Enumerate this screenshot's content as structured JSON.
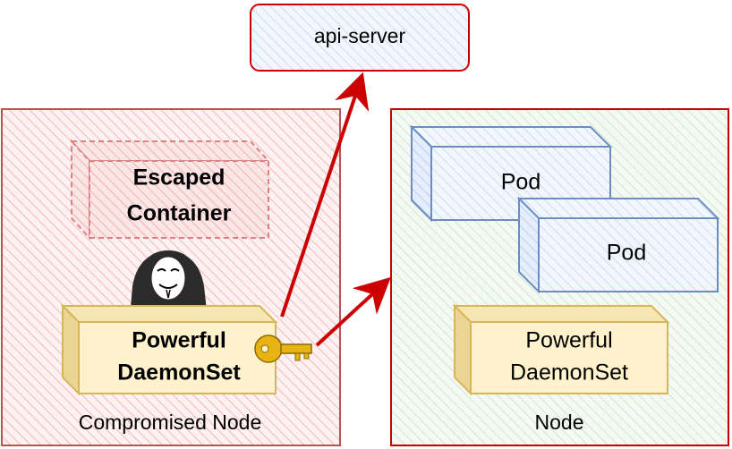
{
  "api_server": {
    "label": "api-server"
  },
  "compromised_node": {
    "label": "Compromised Node",
    "escaped_container": {
      "line1": "Escaped",
      "line2": "Container"
    },
    "daemonset": {
      "line1": "Powerful",
      "line2": "DaemonSet"
    }
  },
  "node": {
    "label": "Node",
    "pods": [
      {
        "label": "Pod"
      },
      {
        "label": "Pod"
      }
    ],
    "daemonset": {
      "line1": "Powerful",
      "line2": "DaemonSet"
    }
  },
  "colors": {
    "red": "#cc0000",
    "red_fill": "#f8d4d4",
    "green_fill": "#d5e8d4",
    "blue_stroke": "#6c8ebf",
    "blue_fill": "#dae8fc",
    "yellow_fill": "#fff2cc",
    "yellow_stroke": "#d6b656",
    "key_gold": "#e8b414"
  },
  "icons": [
    "hacker-icon",
    "key-icon"
  ]
}
